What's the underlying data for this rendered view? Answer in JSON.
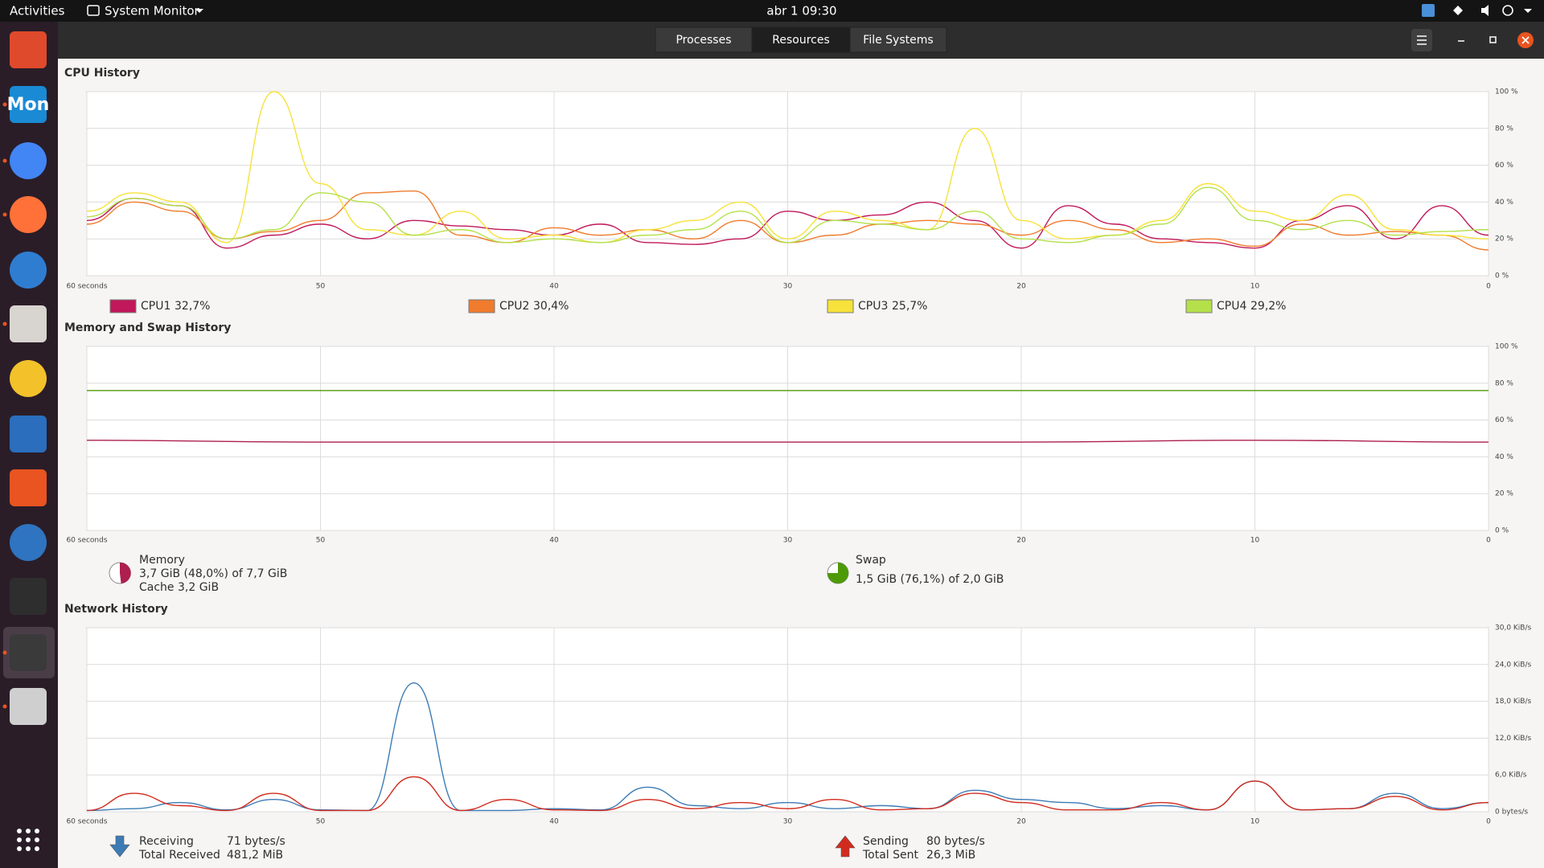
{
  "topbar": {
    "activities": "Activities",
    "app_menu": "System Monitor",
    "clock": "abr 1  09:30"
  },
  "dock": {
    "mon_label": "Mon"
  },
  "tabs": [
    "Processes",
    "Resources",
    "File Systems"
  ],
  "cpu": {
    "type": "line",
    "title": "CPU History",
    "x": [
      60,
      58,
      56,
      54,
      52,
      50,
      48,
      46,
      44,
      42,
      40,
      38,
      36,
      34,
      32,
      30,
      28,
      26,
      24,
      22,
      20,
      18,
      16,
      14,
      12,
      10,
      8,
      6,
      4,
      2,
      0
    ],
    "xlim": [
      60,
      0
    ],
    "xticks": [
      {
        "value": 60,
        "label": "60 seconds"
      },
      50,
      40,
      30,
      20,
      10,
      0
    ],
    "ylim": [
      0,
      100
    ],
    "yticks": [
      {
        "value": 100,
        "label": "100 %"
      },
      {
        "value": 80,
        "label": "80 %"
      },
      {
        "value": 60,
        "label": "60 %"
      },
      {
        "value": 40,
        "label": "40 %"
      },
      {
        "value": 20,
        "label": "20 %"
      },
      {
        "value": 0,
        "label": "0 %"
      }
    ],
    "grid": true,
    "series": [
      {
        "name": "CPU1",
        "color": "#c0185a",
        "value_label": "32,7%",
        "values": [
          30,
          42,
          38,
          15,
          22,
          28,
          20,
          30,
          27,
          25,
          22,
          28,
          18,
          17,
          20,
          35,
          30,
          33,
          40,
          30,
          15,
          38,
          28,
          20,
          18,
          15,
          30,
          38,
          20,
          38,
          22
        ]
      },
      {
        "name": "CPU2",
        "color": "#f07b2c",
        "value_label": "30,4%",
        "values": [
          28,
          40,
          35,
          20,
          24,
          30,
          45,
          46,
          22,
          18,
          26,
          22,
          25,
          20,
          30,
          18,
          22,
          28,
          30,
          28,
          22,
          30,
          25,
          18,
          20,
          16,
          28,
          22,
          24,
          22,
          14
        ]
      },
      {
        "name": "CPU3",
        "color": "#f6e23a",
        "value_label": "25,7%",
        "values": [
          35,
          45,
          40,
          18,
          100,
          50,
          25,
          22,
          35,
          20,
          22,
          18,
          25,
          30,
          40,
          20,
          35,
          30,
          25,
          80,
          30,
          20,
          22,
          30,
          50,
          35,
          30,
          44,
          25,
          22,
          20
        ]
      },
      {
        "name": "CPU4",
        "color": "#b4e04a",
        "value_label": "29,2%",
        "values": [
          32,
          42,
          38,
          20,
          25,
          45,
          40,
          22,
          25,
          18,
          20,
          18,
          22,
          25,
          35,
          18,
          30,
          28,
          25,
          35,
          20,
          18,
          22,
          28,
          48,
          30,
          25,
          30,
          22,
          24,
          25
        ]
      }
    ]
  },
  "memory": {
    "type": "line",
    "title": "Memory and Swap History",
    "x": [
      60,
      50,
      40,
      30,
      20,
      10,
      0
    ],
    "xlim": [
      60,
      0
    ],
    "xticks": [
      {
        "value": 60,
        "label": "60 seconds"
      },
      50,
      40,
      30,
      20,
      10,
      0
    ],
    "ylim": [
      0,
      100
    ],
    "yticks": [
      {
        "value": 100,
        "label": "100 %"
      },
      {
        "value": 80,
        "label": "80 %"
      },
      {
        "value": 60,
        "label": "60 %"
      },
      {
        "value": 40,
        "label": "40 %"
      },
      {
        "value": 20,
        "label": "20 %"
      },
      {
        "value": 0,
        "label": "0 %"
      }
    ],
    "grid": true,
    "series": [
      {
        "name": "Memory",
        "color": "#ad1f4e",
        "detail": "3,7 GiB (48,0%) of 7,7 GiB",
        "cache": "Cache 3,2 GiB",
        "values": [
          49,
          48,
          48,
          48,
          48,
          49,
          48
        ]
      },
      {
        "name": "Swap",
        "color": "#4e9a06",
        "detail": "1,5 GiB (76,1%) of 2,0 GiB",
        "values": [
          76,
          76,
          76,
          76,
          76,
          76,
          76
        ]
      }
    ]
  },
  "network": {
    "type": "line",
    "title": "Network History",
    "x": [
      60,
      58,
      56,
      54,
      52,
      50,
      48,
      46,
      44,
      42,
      40,
      38,
      36,
      34,
      32,
      30,
      28,
      26,
      24,
      22,
      20,
      18,
      16,
      14,
      12,
      10,
      8,
      6,
      4,
      2,
      0
    ],
    "xlim": [
      60,
      0
    ],
    "xticks": [
      {
        "value": 60,
        "label": "60 seconds"
      },
      50,
      40,
      30,
      20,
      10,
      0
    ],
    "ylim": [
      0,
      30
    ],
    "yticks": [
      {
        "value": 30,
        "label": "30,0 KiB/s"
      },
      {
        "value": 24,
        "label": "24,0 KiB/s"
      },
      {
        "value": 18,
        "label": "18,0 KiB/s"
      },
      {
        "value": 12,
        "label": "12,0 KiB/s"
      },
      {
        "value": 6,
        "label": "6,0 KiB/s"
      },
      {
        "value": 0,
        "label": "0 bytes/s"
      }
    ],
    "grid": true,
    "series": [
      {
        "name": "Receiving",
        "color": "#3d7bb5",
        "rate": "71 bytes/s",
        "total_name": "Total Received",
        "total": "481,2 MiB",
        "values": [
          0.2,
          0.5,
          1.5,
          0.3,
          2,
          0.3,
          0.2,
          21,
          0.2,
          0.2,
          0.5,
          0.3,
          4,
          1,
          0.5,
          1.5,
          0.5,
          1,
          0.5,
          3.5,
          2,
          1.5,
          0.5,
          1,
          0.3,
          5,
          0.3,
          0.5,
          3,
          0.5,
          1.5
        ]
      },
      {
        "name": "Sending",
        "color": "#d22b1e",
        "rate": "80 bytes/s",
        "total_name": "Total Sent",
        "total": "26,3 MiB",
        "values": [
          0.2,
          3,
          1,
          0.2,
          3,
          0.2,
          0.2,
          5.7,
          0.2,
          2,
          0.3,
          0.2,
          2,
          0.5,
          1.5,
          0.5,
          2,
          0.3,
          0.5,
          3,
          1.5,
          0.3,
          0.3,
          1.5,
          0.3,
          5,
          0.3,
          0.5,
          2.5,
          0.3,
          1.5
        ]
      }
    ]
  }
}
